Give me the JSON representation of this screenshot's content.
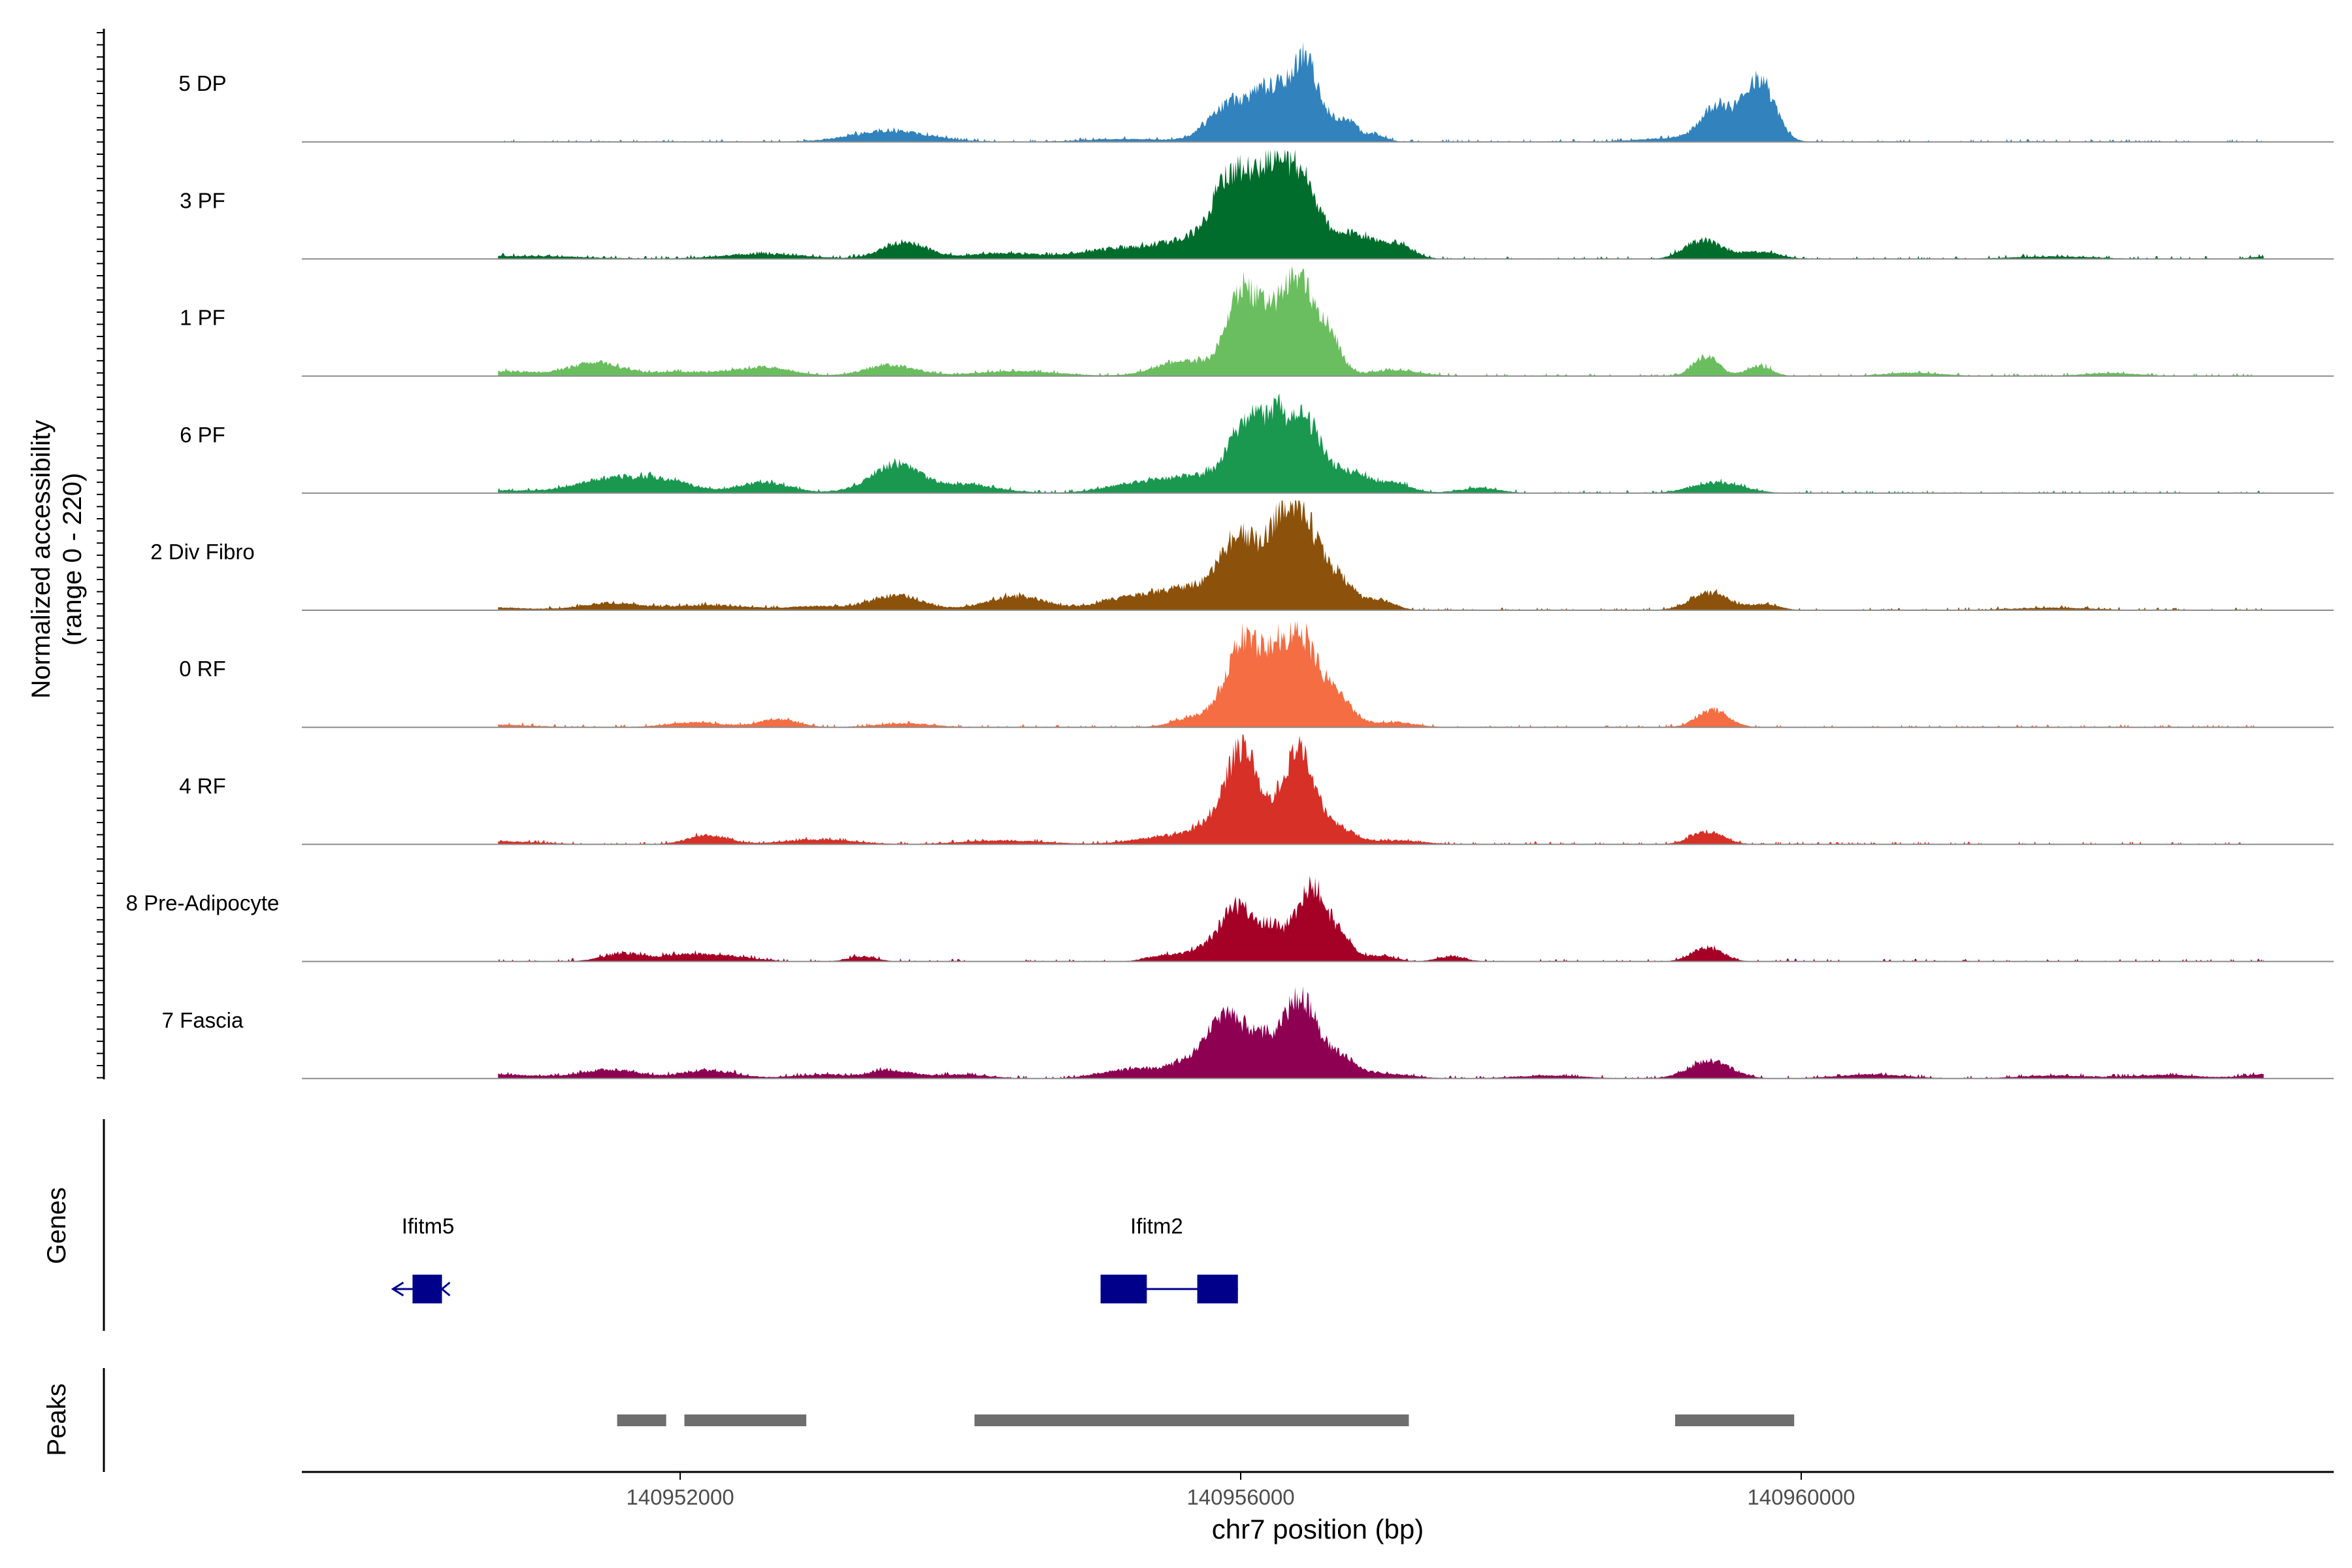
{
  "chart_data": {
    "type": "area",
    "title": "",
    "ylabel_line1": "Normalized accessibility",
    "ylabel_line2": "(range 0 - 220)",
    "xlabel": "chr7 position (bp)",
    "xlim": [
      140949300,
      140963800
    ],
    "ylim": [
      0,
      220
    ],
    "x_ticks": [
      {
        "value": 140952000,
        "label": "140952000"
      },
      {
        "value": 140956000,
        "label": "140956000"
      },
      {
        "value": 140960000,
        "label": "140960000"
      }
    ],
    "genes_label": "Genes",
    "peaks_label": "Peaks",
    "series": [
      {
        "name": "5 DP",
        "color": "#3182bd",
        "peaks": [
          [
            140953500,
            22,
            280
          ],
          [
            140955200,
            6,
            300
          ],
          [
            140955950,
            82,
            160
          ],
          [
            140956230,
            88,
            110
          ],
          [
            140956450,
            140,
            90
          ],
          [
            140956600,
            40,
            120
          ],
          [
            140956770,
            30,
            60
          ],
          [
            140956950,
            16,
            80
          ],
          [
            140959400,
            70,
            110
          ],
          [
            140959700,
            125,
            110
          ],
          [
            140959100,
            8,
            250
          ]
        ]
      },
      {
        "name": "3 PF",
        "color": "#006d2c",
        "peaks": [
          [
            140950800,
            6,
            500
          ],
          [
            140952600,
            10,
            300
          ],
          [
            140953600,
            34,
            160
          ],
          [
            140954300,
            12,
            250
          ],
          [
            140955100,
            20,
            250
          ],
          [
            140955600,
            34,
            200
          ],
          [
            140955950,
            165,
            140
          ],
          [
            140956200,
            130,
            100
          ],
          [
            140956420,
            172,
            130
          ],
          [
            140956800,
            48,
            130
          ],
          [
            140957100,
            30,
            120
          ],
          [
            140959300,
            38,
            130
          ],
          [
            140959700,
            14,
            140
          ],
          [
            140961800,
            5,
            300
          ],
          [
            140963300,
            5,
            100
          ]
        ]
      },
      {
        "name": "1 PF",
        "color": "#6abe5f",
        "peaks": [
          [
            140950600,
            10,
            400
          ],
          [
            140951400,
            25,
            180
          ],
          [
            140952000,
            8,
            250
          ],
          [
            140952600,
            18,
            200
          ],
          [
            140953500,
            22,
            180
          ],
          [
            140954400,
            10,
            300
          ],
          [
            140955600,
            30,
            200
          ],
          [
            140956010,
            170,
            110
          ],
          [
            140956200,
            80,
            80
          ],
          [
            140956400,
            190,
            110
          ],
          [
            140956620,
            80,
            90
          ],
          [
            140957100,
            12,
            180
          ],
          [
            140959320,
            40,
            90
          ],
          [
            140959700,
            20,
            90
          ],
          [
            140960800,
            7,
            200
          ],
          [
            140962200,
            6,
            200
          ]
        ]
      },
      {
        "name": "6 PF",
        "color": "#1a9850",
        "peaks": [
          [
            140950600,
            6,
            300
          ],
          [
            140951500,
            28,
            250
          ],
          [
            140951900,
            22,
            200
          ],
          [
            140952600,
            22,
            180
          ],
          [
            140953400,
            12,
            200
          ],
          [
            140953550,
            48,
            150
          ],
          [
            140954000,
            18,
            250
          ],
          [
            140955300,
            20,
            250
          ],
          [
            140955700,
            28,
            200
          ],
          [
            140956050,
            140,
            130
          ],
          [
            140956250,
            80,
            80
          ],
          [
            140956450,
            150,
            130
          ],
          [
            140956800,
            40,
            120
          ],
          [
            140957100,
            20,
            120
          ],
          [
            140957700,
            10,
            150
          ],
          [
            140959400,
            22,
            180
          ]
        ]
      },
      {
        "name": "2 Div Fibro",
        "color": "#8c510a",
        "peaks": [
          [
            140950600,
            6,
            300
          ],
          [
            140951500,
            14,
            200
          ],
          [
            140952200,
            10,
            300
          ],
          [
            140953000,
            8,
            200
          ],
          [
            140953550,
            30,
            180
          ],
          [
            140954400,
            28,
            220
          ],
          [
            140955200,
            25,
            200
          ],
          [
            140955600,
            40,
            180
          ],
          [
            140956000,
            150,
            150
          ],
          [
            140956270,
            90,
            90
          ],
          [
            140956430,
            185,
            120
          ],
          [
            140956700,
            60,
            110
          ],
          [
            140957000,
            20,
            100
          ],
          [
            140959350,
            35,
            140
          ],
          [
            140959750,
            12,
            100
          ],
          [
            140961800,
            5,
            300
          ]
        ]
      },
      {
        "name": "0 RF",
        "color": "#f46d43",
        "peaks": [
          [
            140950600,
            6,
            300
          ],
          [
            140952100,
            10,
            200
          ],
          [
            140952700,
            16,
            140
          ],
          [
            140953600,
            8,
            200
          ],
          [
            140955700,
            22,
            160
          ],
          [
            140956020,
            175,
            120
          ],
          [
            140956230,
            70,
            80
          ],
          [
            140956420,
            185,
            130
          ],
          [
            140956700,
            50,
            110
          ],
          [
            140957100,
            10,
            150
          ],
          [
            140959370,
            35,
            110
          ]
        ]
      },
      {
        "name": "4 RF",
        "color": "#d73027",
        "peaks": [
          [
            140950700,
            6,
            300
          ],
          [
            140952200,
            18,
            150
          ],
          [
            140953000,
            10,
            250
          ],
          [
            140954300,
            8,
            300
          ],
          [
            140955500,
            16,
            250
          ],
          [
            140955850,
            40,
            150
          ],
          [
            140956020,
            175,
            110
          ],
          [
            140956240,
            30,
            60
          ],
          [
            140956420,
            185,
            110
          ],
          [
            140956700,
            30,
            110
          ],
          [
            140957100,
            8,
            200
          ],
          [
            140959330,
            25,
            120
          ]
        ]
      },
      {
        "name": "8 Pre-Adipocyte",
        "color": "#a50026",
        "peaks": [
          [
            140951600,
            16,
            150
          ],
          [
            140952000,
            10,
            150
          ],
          [
            140952300,
            12,
            200
          ],
          [
            140953300,
            10,
            100
          ],
          [
            140955450,
            12,
            120
          ],
          [
            140955800,
            28,
            150
          ],
          [
            140956000,
            100,
            120
          ],
          [
            140956230,
            55,
            80
          ],
          [
            140956500,
            150,
            110
          ],
          [
            140956720,
            40,
            90
          ],
          [
            140957000,
            12,
            100
          ],
          [
            140957500,
            10,
            100
          ],
          [
            140959330,
            28,
            110
          ]
        ]
      },
      {
        "name": "7 Fascia",
        "color": "#8e0152",
        "peaks": [
          [
            140950700,
            8,
            300
          ],
          [
            140951500,
            18,
            200
          ],
          [
            140952200,
            16,
            200
          ],
          [
            140953000,
            8,
            200
          ],
          [
            140953500,
            16,
            150
          ],
          [
            140954000,
            8,
            200
          ],
          [
            140955200,
            18,
            200
          ],
          [
            140955600,
            26,
            150
          ],
          [
            140955900,
            120,
            140
          ],
          [
            140956150,
            60,
            100
          ],
          [
            140956420,
            160,
            120
          ],
          [
            140956700,
            40,
            110
          ],
          [
            140957000,
            10,
            200
          ],
          [
            140958200,
            6,
            250
          ],
          [
            140959350,
            35,
            150
          ],
          [
            140960500,
            8,
            250
          ],
          [
            140961800,
            6,
            250
          ],
          [
            140962600,
            7,
            250
          ],
          [
            140963300,
            8,
            150
          ]
        ]
      }
    ],
    "genes": [
      {
        "name": "Ifitm5",
        "label_x": 140950200,
        "start": 140949950,
        "end": 140950300,
        "strand": "-",
        "exons": [
          [
            140950090,
            140950300
          ]
        ]
      },
      {
        "name": "Ifitm2",
        "label_x": 140955400,
        "start": 140955000,
        "end": 140955980,
        "strand": "+",
        "exons": [
          [
            140955000,
            140955330
          ],
          [
            140955690,
            140955980
          ]
        ]
      }
    ],
    "peaks": [
      [
        140951550,
        140951900
      ],
      [
        140952030,
        140952900
      ],
      [
        140954100,
        140957200
      ],
      [
        140959100,
        140959950
      ]
    ]
  }
}
